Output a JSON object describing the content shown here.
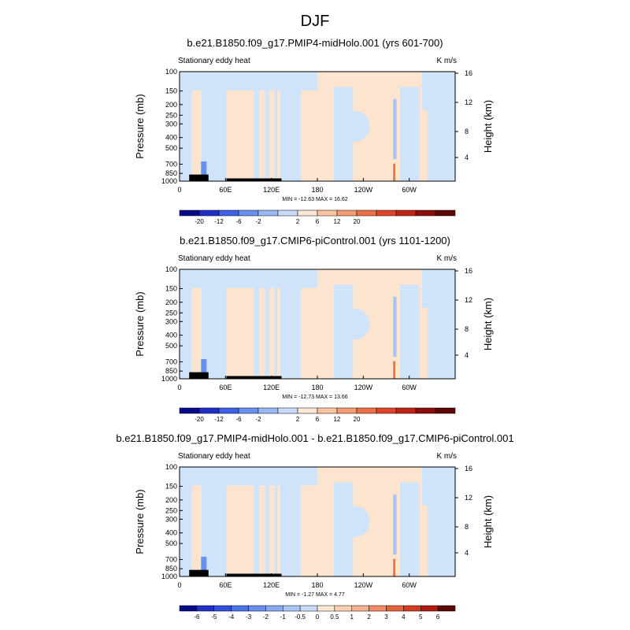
{
  "figure_title": "DJF",
  "chart_data": [
    {
      "type": "heatmap",
      "title": "b.e21.B1850.f09_g17.PMIP4-midHolo.001 (yrs 601-700)",
      "left_label": "Stationary eddy heat",
      "right_label": "K m/s",
      "ylabel": "Pressure (mb)",
      "ylabel_right": "Height (km)",
      "y_ticks": [
        "100",
        "150",
        "200",
        "250",
        "300",
        "400",
        "500",
        "700",
        "850",
        "1000"
      ],
      "y_right_ticks": [
        "16",
        "12",
        "8",
        "4"
      ],
      "x_ticks": [
        "0",
        "60E",
        "120E",
        "180",
        "120W",
        "60W"
      ],
      "stats": "MIN = -12.63   MAX =  16.62",
      "colorbar_labels": [
        "-20",
        "-12",
        "-6",
        "-2",
        "2",
        "6",
        "12",
        "20"
      ],
      "colors": [
        "#0a0a8c",
        "#1f2fc8",
        "#3c60e6",
        "#6890f0",
        "#98b8f6",
        "#c8dcfa",
        "#fde6d2",
        "#fac4a2",
        "#f69c72",
        "#ee7048",
        "#de4428",
        "#c02414",
        "#8c0c0c",
        "#5e0606"
      ]
    },
    {
      "type": "heatmap",
      "title": "b.e21.B1850.f09_g17.CMIP6-piControl.001 (yrs 1101-1200)",
      "left_label": "Stationary eddy heat",
      "right_label": "K m/s",
      "ylabel": "Pressure (mb)",
      "ylabel_right": "Height (km)",
      "y_ticks": [
        "100",
        "150",
        "200",
        "250",
        "300",
        "400",
        "500",
        "700",
        "850",
        "1000"
      ],
      "y_right_ticks": [
        "16",
        "12",
        "8",
        "4"
      ],
      "x_ticks": [
        "0",
        "60E",
        "120E",
        "180",
        "120W",
        "60W"
      ],
      "stats": "MIN = -12.73   MAX =  13.66",
      "colorbar_labels": [
        "-20",
        "-12",
        "-6",
        "-2",
        "2",
        "6",
        "12",
        "20"
      ],
      "colors": [
        "#0a0a8c",
        "#1f2fc8",
        "#3c60e6",
        "#6890f0",
        "#98b8f6",
        "#c8dcfa",
        "#fde6d2",
        "#fac4a2",
        "#f69c72",
        "#ee7048",
        "#de4428",
        "#c02414",
        "#8c0c0c",
        "#5e0606"
      ]
    },
    {
      "type": "heatmap",
      "title": "b.e21.B1850.f09_g17.PMIP4-midHolo.001 - b.e21.B1850.f09_g17.CMIP6-piControl.001",
      "left_label": "Stationary eddy heat",
      "right_label": "K m/s",
      "ylabel": "Pressure (mb)",
      "ylabel_right": "Height (km)",
      "y_ticks": [
        "100",
        "150",
        "200",
        "250",
        "300",
        "400",
        "500",
        "700",
        "850",
        "1000"
      ],
      "y_right_ticks": [
        "16",
        "12",
        "8",
        "4"
      ],
      "x_ticks": [
        "0",
        "60E",
        "120E",
        "180",
        "120W",
        "60W"
      ],
      "stats": "MIN =  -1.27   MAX =   4.77",
      "colorbar_labels": [
        "-6",
        "-5",
        "-4",
        "-3",
        "-2",
        "-1",
        "-0.5",
        "0",
        "0.5",
        "1",
        "2",
        "3",
        "4",
        "5",
        "6"
      ],
      "colors": [
        "#0a0a8c",
        "#1f2fc8",
        "#3050dc",
        "#4a72ea",
        "#6890f0",
        "#88aaf4",
        "#a8c4f8",
        "#c8dcfa",
        "#fde6d2",
        "#fbcfb0",
        "#f8b08a",
        "#f48c64",
        "#e8623e",
        "#d23c22",
        "#b01c10",
        "#5e0606"
      ]
    }
  ]
}
